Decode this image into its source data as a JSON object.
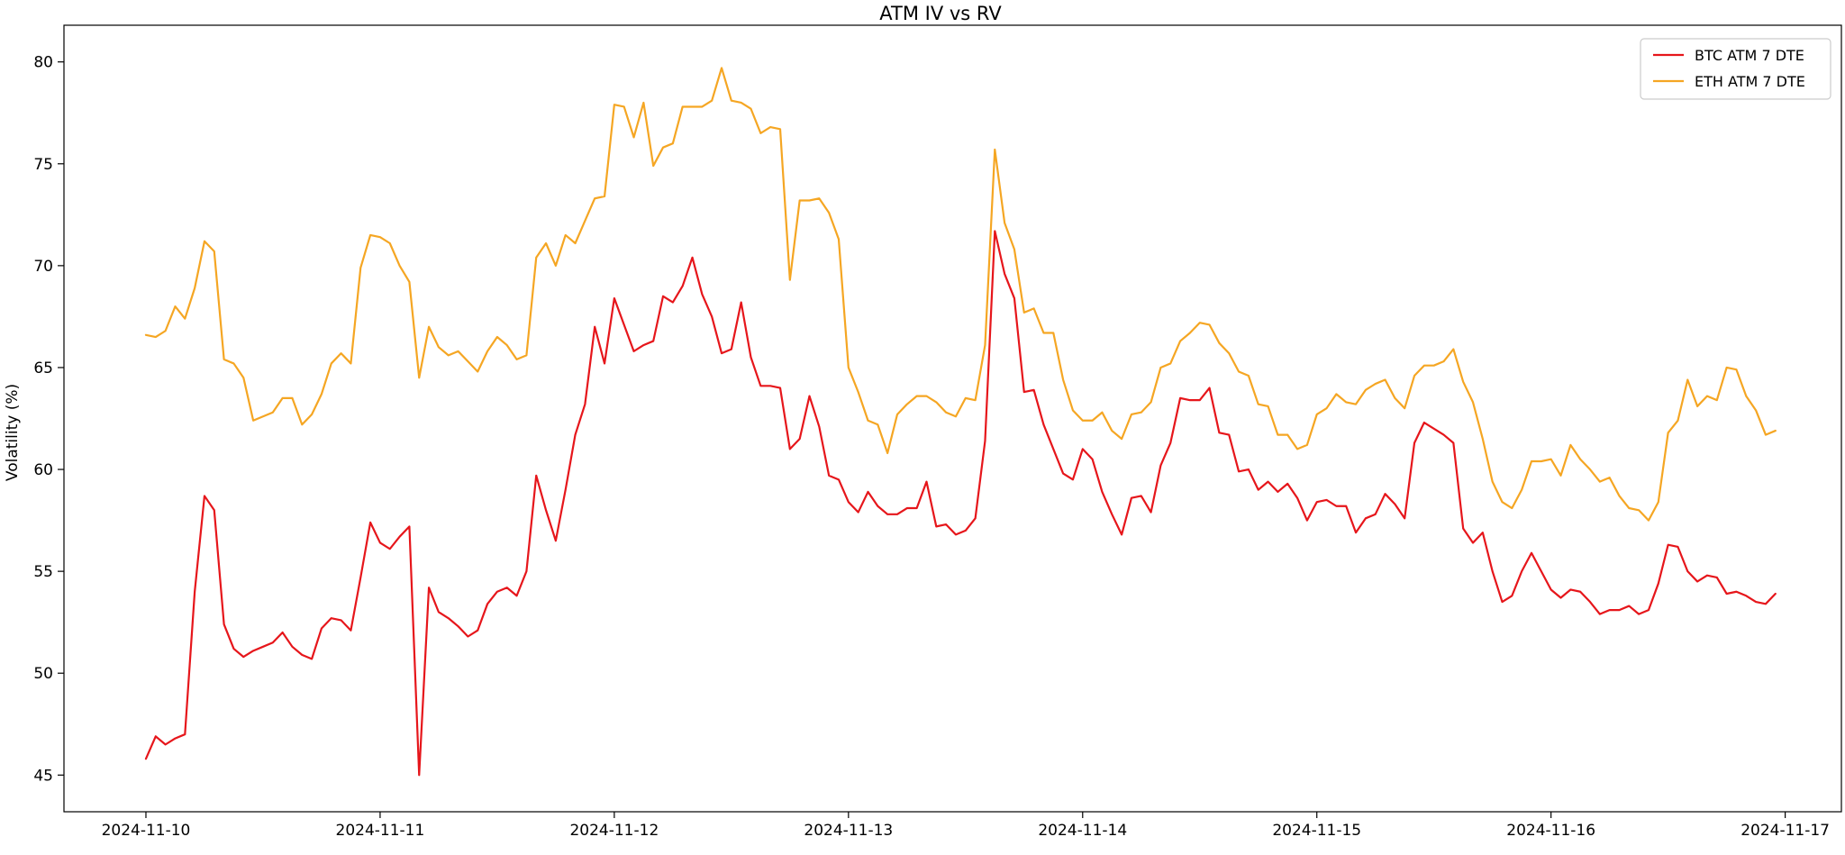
{
  "chart_data": {
    "type": "line",
    "title": "ATM IV vs RV",
    "xlabel": "",
    "ylabel": "Volatility (%)",
    "ylim": [
      43.2,
      81.8
    ],
    "yticks": [
      45,
      50,
      55,
      60,
      65,
      70,
      75,
      80
    ],
    "xticks": [
      "2024-11-10",
      "2024-11-11",
      "2024-11-12",
      "2024-11-13",
      "2024-11-14",
      "2024-11-15",
      "2024-11-16",
      "2024-11-17"
    ],
    "xlim": [
      -0.35,
      7.24
    ],
    "x_start": "2024-11-10",
    "interval_hours": 1,
    "grid": false,
    "legend_position": "top-right",
    "series": [
      {
        "name": "BTC ATM 7 DTE",
        "color": "#e6161b",
        "values": [
          45.8,
          46.9,
          46.5,
          46.8,
          47.0,
          54.0,
          58.7,
          58.0,
          52.4,
          51.2,
          50.8,
          51.1,
          51.3,
          51.5,
          52.0,
          51.3,
          50.9,
          50.7,
          52.2,
          52.7,
          52.6,
          52.1,
          54.7,
          57.4,
          56.4,
          56.1,
          56.7,
          57.2,
          45.0,
          54.2,
          53.0,
          52.7,
          52.3,
          51.8,
          52.1,
          53.4,
          54.0,
          54.2,
          53.8,
          55.0,
          59.7,
          58.0,
          56.5,
          59.0,
          61.7,
          63.2,
          67.0,
          65.2,
          68.4,
          67.1,
          65.8,
          66.1,
          66.3,
          68.5,
          68.2,
          69.0,
          70.4,
          68.6,
          67.5,
          65.7,
          65.9,
          68.2,
          65.5,
          64.1,
          64.1,
          64.0,
          61.0,
          61.5,
          63.6,
          62.1,
          59.7,
          59.5,
          58.4,
          57.9,
          58.9,
          58.2,
          57.8,
          57.8,
          58.1,
          58.1,
          59.4,
          57.2,
          57.3,
          56.8,
          57.0,
          57.6,
          61.4,
          71.7,
          69.6,
          68.4,
          63.8,
          63.9,
          62.2,
          61.0,
          59.8,
          59.5,
          61.0,
          60.5,
          58.9,
          57.8,
          56.8,
          58.6,
          58.7,
          57.9,
          60.2,
          61.3,
          63.5,
          63.4,
          63.4,
          64.0,
          61.8,
          61.7,
          59.9,
          60.0,
          59.0,
          59.4,
          58.9,
          59.3,
          58.6,
          57.5,
          58.4,
          58.5,
          58.2,
          58.2,
          56.9,
          57.6,
          57.8,
          58.8,
          58.3,
          57.6,
          61.3,
          62.3,
          62.0,
          61.7,
          61.3,
          57.1,
          56.4,
          56.9,
          55.0,
          53.5,
          53.8,
          55.0,
          55.9,
          55.0,
          54.1,
          53.7,
          54.1,
          54.0,
          53.5,
          52.9,
          53.1,
          53.1,
          53.3,
          52.9,
          53.1,
          54.4,
          56.3,
          56.2,
          55.0,
          54.5,
          54.8,
          54.7,
          53.9,
          54.0,
          53.8,
          53.5,
          53.4,
          53.9
        ]
      },
      {
        "name": "ETH ATM 7 DTE",
        "color": "#f5a623",
        "values": [
          66.6,
          66.5,
          66.8,
          68.0,
          67.4,
          68.9,
          71.2,
          70.7,
          65.4,
          65.2,
          64.5,
          62.4,
          62.6,
          62.8,
          63.5,
          63.5,
          62.2,
          62.7,
          63.7,
          65.2,
          65.7,
          65.2,
          69.9,
          71.5,
          71.4,
          71.1,
          70.0,
          69.2,
          64.5,
          67.0,
          66.0,
          65.6,
          65.8,
          65.3,
          64.8,
          65.8,
          66.5,
          66.1,
          65.4,
          65.6,
          70.4,
          71.1,
          70.0,
          71.5,
          71.1,
          72.2,
          73.3,
          73.4,
          77.9,
          77.8,
          76.3,
          78.0,
          74.9,
          75.8,
          76.0,
          77.8,
          77.8,
          77.8,
          78.1,
          79.7,
          78.1,
          78.0,
          77.7,
          76.5,
          76.8,
          76.7,
          69.3,
          73.2,
          73.2,
          73.3,
          72.6,
          71.3,
          65.0,
          63.8,
          62.4,
          62.2,
          60.8,
          62.7,
          63.2,
          63.6,
          63.6,
          63.3,
          62.8,
          62.6,
          63.5,
          63.4,
          66.1,
          75.7,
          72.1,
          70.8,
          67.7,
          67.9,
          66.7,
          66.7,
          64.4,
          62.9,
          62.4,
          62.4,
          62.8,
          61.9,
          61.5,
          62.7,
          62.8,
          63.3,
          65.0,
          65.2,
          66.3,
          66.7,
          67.2,
          67.1,
          66.2,
          65.7,
          64.8,
          64.6,
          63.2,
          63.1,
          61.7,
          61.7,
          61.0,
          61.2,
          62.7,
          63.0,
          63.7,
          63.3,
          63.2,
          63.9,
          64.2,
          64.4,
          63.5,
          63.0,
          64.6,
          65.1,
          65.1,
          65.3,
          65.9,
          64.3,
          63.3,
          61.5,
          59.4,
          58.4,
          58.1,
          59.0,
          60.4,
          60.4,
          60.5,
          59.7,
          61.2,
          60.5,
          60.0,
          59.4,
          59.6,
          58.7,
          58.1,
          58.0,
          57.5,
          58.4,
          61.8,
          62.4,
          64.4,
          63.1,
          63.6,
          63.4,
          65.0,
          64.9,
          63.6,
          62.9,
          61.7,
          61.9
        ]
      }
    ]
  }
}
